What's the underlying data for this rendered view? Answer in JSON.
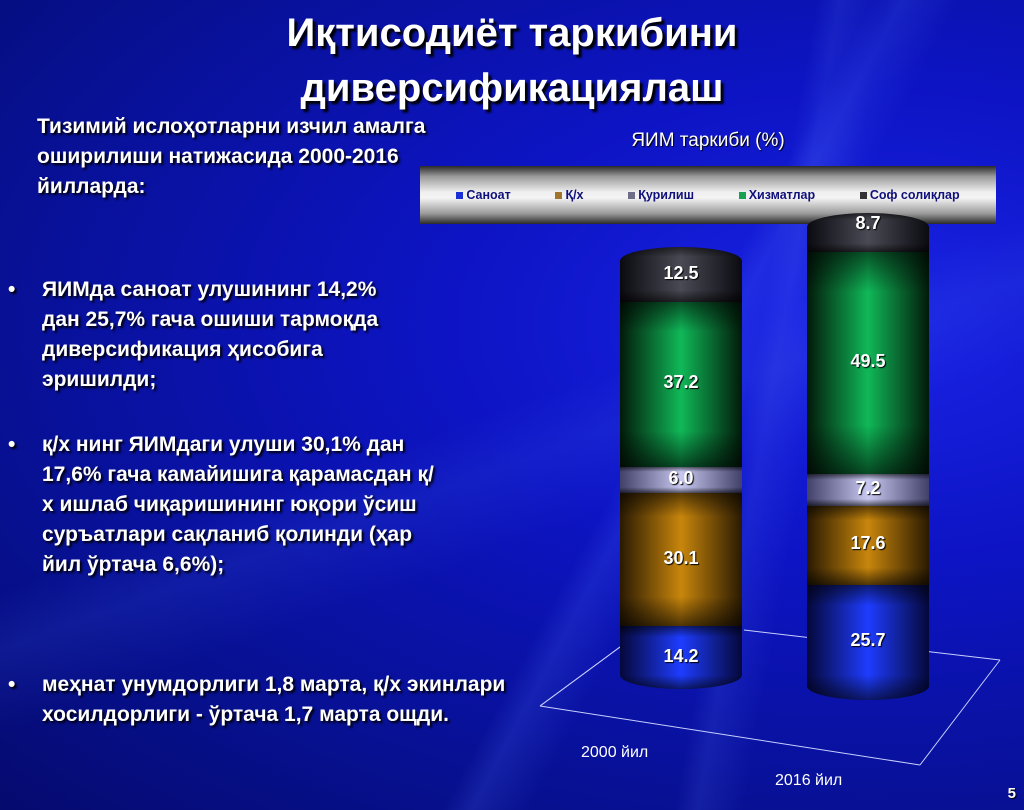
{
  "slide": {
    "title_line1": "Иқтисодиёт таркибини",
    "title_line2": "диверсификациялаш",
    "intro": "Тизимий ислоҳотларни изчил амалга оширилиши натижасида 2000-2016 йилларда:",
    "bullet_symbol": "•",
    "bullets": [
      {
        "text": "ЯИМда саноат улушининг 14,2% дан 25,7% гача ошиши тармоқда диверсификация ҳисобига эришилди;"
      },
      {
        "text": "қ/х нинг ЯИМдаги улуши 30,1% дан 17,6% гача камайишига қарамасдан қ/х ишлаб чиқаришининг юқори ўсиш суръатлари сақланиб қолинди (ҳар йил ўртача 6,6%);"
      },
      {
        "text": "меҳнат унумдорлиги 1,8 марта, қ/х экинлари хосилдорлиги - ўртача 1,7 марта ощди."
      }
    ],
    "slide_number": "5"
  },
  "chart_data": {
    "type": "bar",
    "stacked": true,
    "style": "3d-cylinder",
    "title": "ЯИМ таркиби (%)",
    "categories": [
      "2000 йил",
      "2016 йил"
    ],
    "series": [
      {
        "name": "Саноат",
        "color": "#1a2fd6",
        "values": [
          14.2,
          25.7
        ]
      },
      {
        "name": "Қ/х",
        "color": "#b07a10",
        "values": [
          30.1,
          17.6
        ]
      },
      {
        "name": "Қурилиш",
        "color": "#8888c8",
        "values": [
          6.0,
          7.2
        ]
      },
      {
        "name": "Хизматлар",
        "color": "#18a050",
        "values": [
          37.2,
          49.5
        ]
      },
      {
        "name": "Соф солиқлар",
        "color": "#333333",
        "values": [
          12.5,
          8.7
        ]
      }
    ],
    "legend_position": "top",
    "xlabel": "",
    "ylabel": "",
    "ylim": [
      0,
      100
    ],
    "grid": false
  },
  "labels": {
    "c0": [
      "14.2",
      "30.1",
      "6.0",
      "37.2",
      "12.5"
    ],
    "c1": [
      "25.7",
      "17.6",
      "7.2",
      "49.5",
      "8.7"
    ]
  }
}
